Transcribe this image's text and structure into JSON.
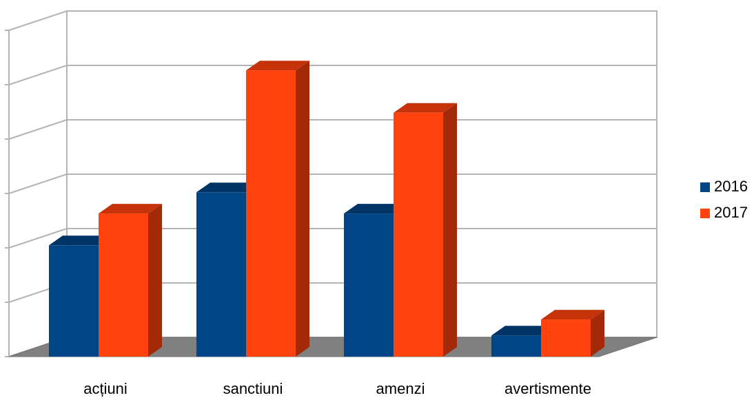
{
  "chart_data": {
    "type": "bar",
    "style": "3d-clustered",
    "categories": [
      "acțiuni",
      "sanctiuni",
      "amenzi",
      "avertismente"
    ],
    "series": [
      {
        "name": "2016",
        "values": [
          21,
          31,
          27,
          4
        ],
        "color": "#004586",
        "side_color": "#00284f",
        "top_color": "#003366"
      },
      {
        "name": "2017",
        "values": [
          27,
          54,
          46,
          7
        ],
        "color": "#ff420e",
        "side_color": "#a32a08",
        "top_color": "#c6330a"
      }
    ],
    "ylim": [
      0,
      60
    ],
    "grid": true,
    "axis_tick_labels_shown": false,
    "legend_position": "right",
    "floor_color": "#808080"
  }
}
